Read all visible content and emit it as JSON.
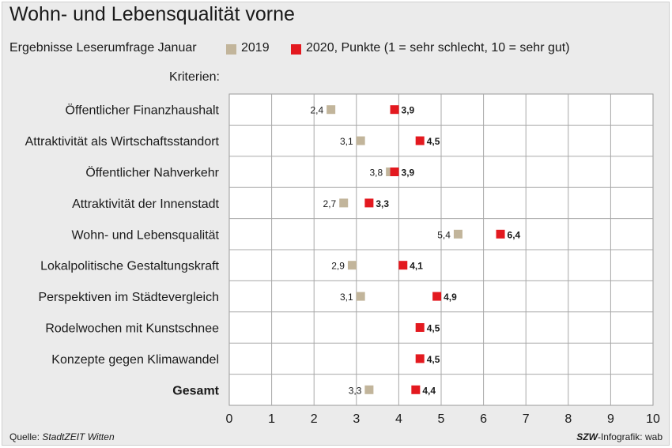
{
  "header": {
    "title": "Wohn- und Lebensqualität vorne",
    "subtitle": "Ergebnisse Leserumfrage Januar",
    "criteria_label": "Kriterien:"
  },
  "legend": [
    {
      "label": "2019",
      "color": "#c2b59b"
    },
    {
      "label": "2020, Punkte (1 = sehr schlecht, 10 = sehr gut)",
      "color": "#e3191f"
    }
  ],
  "footer": {
    "source_prefix": "Quelle: ",
    "source_name": "StadtZEIT Witten",
    "credit_brand": "SZW",
    "credit_rest": "-Infografik: wab"
  },
  "chart_data": {
    "type": "scatter",
    "orientation": "horizontal",
    "categories": [
      "Öffentlicher Finanzhaushalt",
      "Attraktivität als Wirtschaftsstandort",
      "Öffentlicher Nahverkehr",
      "Attraktivität der Innenstadt",
      "Wohn- und Lebensqualität",
      "Lokalpolitische Gestaltungskraft",
      "Perspektiven im Städtevergleich",
      "Rodelwochen mit Kunstschnee",
      "Konzepte gegen Klimawandel",
      "Gesamt"
    ],
    "bold_categories": [
      "Gesamt"
    ],
    "series": [
      {
        "name": "2019",
        "color": "#c2b59b",
        "values": [
          2.4,
          3.1,
          3.8,
          2.7,
          5.4,
          2.9,
          3.1,
          null,
          null,
          3.3
        ],
        "labels": [
          "2,4",
          "3,1",
          "3,8",
          "2,7",
          "5,4",
          "2,9",
          "3,1",
          null,
          null,
          "3,3"
        ]
      },
      {
        "name": "2020, Punkte (1 = sehr schlecht, 10 = sehr gut)",
        "color": "#e3191f",
        "values": [
          3.9,
          4.5,
          3.9,
          3.3,
          6.4,
          4.1,
          4.9,
          4.5,
          4.5,
          4.4
        ],
        "labels": [
          "3,9",
          "4,5",
          "3,9",
          "3,3",
          "6,4",
          "4,1",
          "4,9",
          "4,5",
          "4,5",
          "4,4"
        ]
      }
    ],
    "xlim": [
      0,
      10
    ],
    "xticks": [
      "0",
      "1",
      "2",
      "3",
      "4",
      "5",
      "6",
      "7",
      "8",
      "9",
      "10"
    ],
    "grid": true
  }
}
